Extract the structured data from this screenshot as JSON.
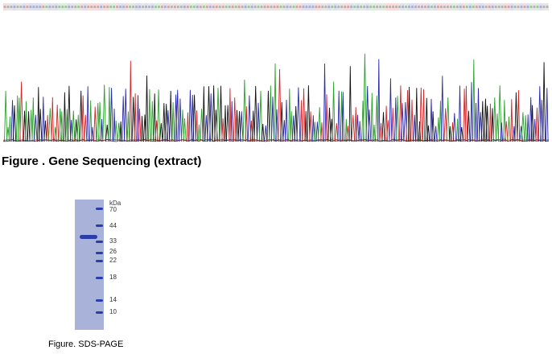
{
  "figure1": {
    "caption": "Figure . Gene Sequencing (extract)",
    "base_colors": {
      "A": "#2ca02c",
      "C": "#2a2ab0",
      "G": "#111111",
      "T": "#d62728"
    },
    "sequence_strip_colors": [
      "#d9f0d9",
      "#dde0f5",
      "#e6e6e6",
      "#f8dcdc"
    ]
  },
  "figure2": {
    "caption": "Figure. SDS-PAGE",
    "unit_label": "kDa",
    "markers": [
      "70",
      "44",
      "33",
      "26",
      "22",
      "18",
      "14",
      "10"
    ],
    "lane_color": "#a9b3da",
    "band_color": "#2b3da6"
  }
}
